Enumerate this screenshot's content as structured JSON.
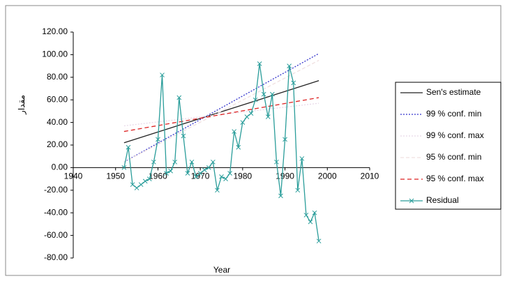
{
  "chart_data": {
    "type": "line",
    "x_label": "Year",
    "y_label": "مقدار",
    "xlim": [
      1940,
      2010
    ],
    "xticks": [
      1940,
      1950,
      1960,
      1970,
      1980,
      1990,
      2000,
      2010
    ],
    "ylim": [
      -80,
      120
    ],
    "yticks": [
      {
        "value": -80,
        "label": "-80.00"
      },
      {
        "value": -60,
        "label": "-60.00"
      },
      {
        "value": -40,
        "label": "-40.00"
      },
      {
        "value": -20,
        "label": "-20.00"
      },
      {
        "value": 0,
        "label": "0.00"
      },
      {
        "value": 20,
        "label": "20.00"
      },
      {
        "value": 40,
        "label": "40.00"
      },
      {
        "value": 60,
        "label": "60.00"
      },
      {
        "value": 80,
        "label": "80.00"
      },
      {
        "value": 100,
        "label": "100.00"
      },
      {
        "value": 120,
        "label": "120.00"
      }
    ],
    "legend": "right",
    "series": [
      {
        "name": "Sen's estimate",
        "color": "#222222",
        "dash": "",
        "x": [
          1952,
          1998
        ],
        "values": [
          22,
          77
        ]
      },
      {
        "name": "99 % conf. min",
        "color": "#3333cc",
        "dash": "2 2",
        "x": [
          1952,
          1998
        ],
        "values": [
          5,
          101
        ]
      },
      {
        "name": "99 % conf. max",
        "color": "#e8d8e8",
        "dash": "2 2",
        "x": [
          1952,
          1998
        ],
        "values": [
          37,
          57
        ]
      },
      {
        "name": "95 % conf. min",
        "color": "#f0e0e0",
        "dash": "5 3",
        "x": [
          1952,
          1998
        ],
        "values": [
          5,
          95
        ]
      },
      {
        "name": "95 % conf. max",
        "color": "#dd2222",
        "dash": "6 4",
        "x": [
          1952,
          1998
        ],
        "values": [
          32,
          62
        ]
      },
      {
        "name": "Residual",
        "color": "#2a9d9a",
        "dash": "",
        "marker": "x",
        "x": [
          1952,
          1953,
          1954,
          1955,
          1956,
          1957,
          1958,
          1959,
          1960,
          1961,
          1962,
          1963,
          1964,
          1965,
          1966,
          1967,
          1968,
          1969,
          1970,
          1971,
          1972,
          1973,
          1974,
          1975,
          1976,
          1977,
          1978,
          1979,
          1980,
          1981,
          1982,
          1983,
          1984,
          1985,
          1986,
          1987,
          1988,
          1989,
          1990,
          1991,
          1992,
          1993,
          1994,
          1995,
          1996,
          1997,
          1998
        ],
        "values": [
          0,
          18,
          -15,
          -18,
          -15,
          -12,
          -10,
          5,
          25,
          82,
          -5,
          -3,
          5,
          62,
          28,
          -5,
          5,
          -8,
          -5,
          -2,
          0,
          5,
          -20,
          -8,
          -10,
          -5,
          32,
          18,
          40,
          45,
          48,
          60,
          92,
          65,
          45,
          65,
          5,
          -25,
          25,
          90,
          75,
          -20,
          8,
          -42,
          -48,
          -40,
          -65
        ]
      }
    ]
  }
}
